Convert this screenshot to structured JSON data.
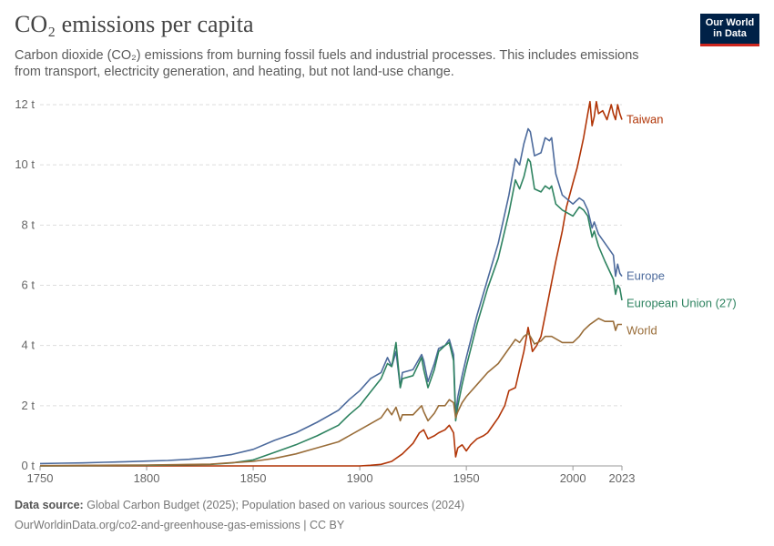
{
  "header": {
    "title": "CO₂ emissions per capita",
    "subtitle": "Carbon dioxide (CO₂) emissions from burning fossil fuels and industrial processes. This includes emissions from transport, electricity generation, and heating, but not land-use change."
  },
  "logo": {
    "line1": "Our World",
    "line2": "in Data",
    "bg_color": "#002147",
    "accent_color": "#ce261e"
  },
  "footer": {
    "source_label": "Data source:",
    "source_text": "Global Carbon Budget (2025); Population based on various sources (2024)",
    "url_text": "OurWorldinData.org/co2-and-greenhouse-gas-emissions | CC BY"
  },
  "chart_data": {
    "type": "line",
    "xlim": [
      1750,
      2023
    ],
    "ylim": [
      0,
      12
    ],
    "x_ticks": [
      1750,
      1800,
      1850,
      1900,
      1950,
      2000,
      2023
    ],
    "y_ticks": [
      0,
      2,
      4,
      6,
      8,
      10,
      12
    ],
    "y_tick_labels": [
      "0 t",
      "2 t",
      "4 t",
      "6 t",
      "8 t",
      "10 t",
      "12 t"
    ],
    "grid": "horizontal dashed",
    "legend": "labels at line ends (right)",
    "series": [
      {
        "name": "Taiwan",
        "color": "#b13507",
        "x": [
          1750,
          1900,
          1905,
          1910,
          1915,
          1920,
          1925,
          1928,
          1930,
          1932,
          1935,
          1937,
          1940,
          1942,
          1944,
          1945,
          1946,
          1948,
          1950,
          1952,
          1955,
          1958,
          1960,
          1962,
          1965,
          1968,
          1970,
          1973,
          1975,
          1977,
          1979,
          1980,
          1981,
          1982,
          1983,
          1985,
          1987,
          1990,
          1992,
          1995,
          1997,
          2000,
          2002,
          2005,
          2007,
          2008,
          2009,
          2010,
          2011,
          2012,
          2014,
          2016,
          2018,
          2019,
          2020,
          2021,
          2022,
          2023
        ],
        "y": [
          0.0,
          0.0,
          0.02,
          0.05,
          0.15,
          0.4,
          0.75,
          1.1,
          1.2,
          0.9,
          1.0,
          1.1,
          1.2,
          1.35,
          1.1,
          0.3,
          0.6,
          0.7,
          0.5,
          0.7,
          0.9,
          1.0,
          1.1,
          1.3,
          1.6,
          2.0,
          2.5,
          2.6,
          3.2,
          3.8,
          4.6,
          4.2,
          3.8,
          3.9,
          4.0,
          4.3,
          5.0,
          6.1,
          6.8,
          7.8,
          8.6,
          9.4,
          9.9,
          10.9,
          11.7,
          12.1,
          11.3,
          11.6,
          12.1,
          11.7,
          11.8,
          11.5,
          12.0,
          11.7,
          11.5,
          12.0,
          11.7,
          11.5
        ]
      },
      {
        "name": "Europe",
        "color": "#4c6a9c",
        "x": [
          1750,
          1760,
          1770,
          1780,
          1790,
          1800,
          1810,
          1820,
          1830,
          1840,
          1850,
          1860,
          1870,
          1880,
          1890,
          1895,
          1900,
          1905,
          1910,
          1913,
          1915,
          1917,
          1919,
          1920,
          1925,
          1929,
          1930,
          1932,
          1935,
          1937,
          1940,
          1942,
          1944,
          1945,
          1946,
          1948,
          1950,
          1955,
          1960,
          1965,
          1970,
          1973,
          1975,
          1977,
          1979,
          1980,
          1982,
          1985,
          1987,
          1989,
          1990,
          1992,
          1995,
          2000,
          2003,
          2005,
          2007,
          2009,
          2010,
          2012,
          2015,
          2019,
          2020,
          2021,
          2022,
          2023
        ],
        "y": [
          0.08,
          0.09,
          0.1,
          0.12,
          0.14,
          0.16,
          0.18,
          0.22,
          0.28,
          0.38,
          0.55,
          0.85,
          1.1,
          1.45,
          1.85,
          2.2,
          2.5,
          2.9,
          3.1,
          3.6,
          3.3,
          3.8,
          2.6,
          3.1,
          3.2,
          3.7,
          3.5,
          2.8,
          3.4,
          3.9,
          4.0,
          4.2,
          3.7,
          1.7,
          2.3,
          3.0,
          3.6,
          5.0,
          6.2,
          7.4,
          9.0,
          10.2,
          10.0,
          10.7,
          11.2,
          11.1,
          10.3,
          10.4,
          10.9,
          10.8,
          10.9,
          9.7,
          9.0,
          8.7,
          8.9,
          8.8,
          8.5,
          7.9,
          8.1,
          7.7,
          7.4,
          7.0,
          6.3,
          6.7,
          6.4,
          6.3
        ]
      },
      {
        "name": "European Union (27)",
        "color": "#2e8360",
        "x": [
          1750,
          1800,
          1830,
          1840,
          1850,
          1860,
          1870,
          1880,
          1890,
          1895,
          1900,
          1905,
          1910,
          1913,
          1915,
          1917,
          1919,
          1920,
          1925,
          1929,
          1930,
          1932,
          1935,
          1937,
          1940,
          1942,
          1944,
          1945,
          1946,
          1948,
          1950,
          1955,
          1960,
          1965,
          1970,
          1973,
          1975,
          1977,
          1979,
          1980,
          1982,
          1985,
          1987,
          1989,
          1990,
          1992,
          1995,
          2000,
          2003,
          2005,
          2007,
          2009,
          2010,
          2012,
          2015,
          2019,
          2020,
          2021,
          2022,
          2023
        ],
        "y": [
          0.0,
          0.02,
          0.05,
          0.1,
          0.2,
          0.45,
          0.7,
          1.0,
          1.35,
          1.7,
          2.0,
          2.45,
          2.9,
          3.4,
          3.3,
          4.1,
          2.6,
          2.9,
          3.0,
          3.6,
          3.2,
          2.6,
          3.2,
          3.8,
          4.0,
          4.1,
          3.5,
          1.5,
          2.0,
          2.7,
          3.3,
          4.7,
          5.9,
          6.9,
          8.4,
          9.5,
          9.2,
          9.6,
          10.2,
          10.1,
          9.2,
          9.1,
          9.3,
          9.2,
          9.3,
          8.7,
          8.5,
          8.3,
          8.6,
          8.5,
          8.3,
          7.6,
          7.8,
          7.3,
          6.8,
          6.2,
          5.7,
          6.0,
          5.9,
          5.5
        ]
      },
      {
        "name": "World",
        "color": "#996d39",
        "x": [
          1750,
          1800,
          1830,
          1850,
          1860,
          1870,
          1880,
          1890,
          1900,
          1905,
          1910,
          1913,
          1915,
          1917,
          1919,
          1920,
          1925,
          1929,
          1930,
          1932,
          1935,
          1937,
          1940,
          1942,
          1944,
          1945,
          1946,
          1948,
          1950,
          1955,
          1960,
          1965,
          1970,
          1973,
          1975,
          1977,
          1979,
          1980,
          1982,
          1985,
          1987,
          1990,
          1995,
          2000,
          2003,
          2005,
          2008,
          2010,
          2012,
          2015,
          2019,
          2020,
          2021,
          2022,
          2023
        ],
        "y": [
          0.01,
          0.03,
          0.06,
          0.15,
          0.25,
          0.4,
          0.6,
          0.8,
          1.2,
          1.4,
          1.6,
          1.9,
          1.7,
          1.95,
          1.5,
          1.7,
          1.7,
          2.0,
          1.8,
          1.5,
          1.75,
          2.0,
          2.0,
          2.2,
          2.1,
          1.6,
          1.8,
          2.1,
          2.3,
          2.7,
          3.1,
          3.4,
          3.9,
          4.2,
          4.1,
          4.3,
          4.4,
          4.3,
          4.05,
          4.15,
          4.3,
          4.3,
          4.1,
          4.1,
          4.3,
          4.5,
          4.7,
          4.8,
          4.9,
          4.8,
          4.8,
          4.5,
          4.7,
          4.7,
          4.7
        ]
      }
    ]
  }
}
